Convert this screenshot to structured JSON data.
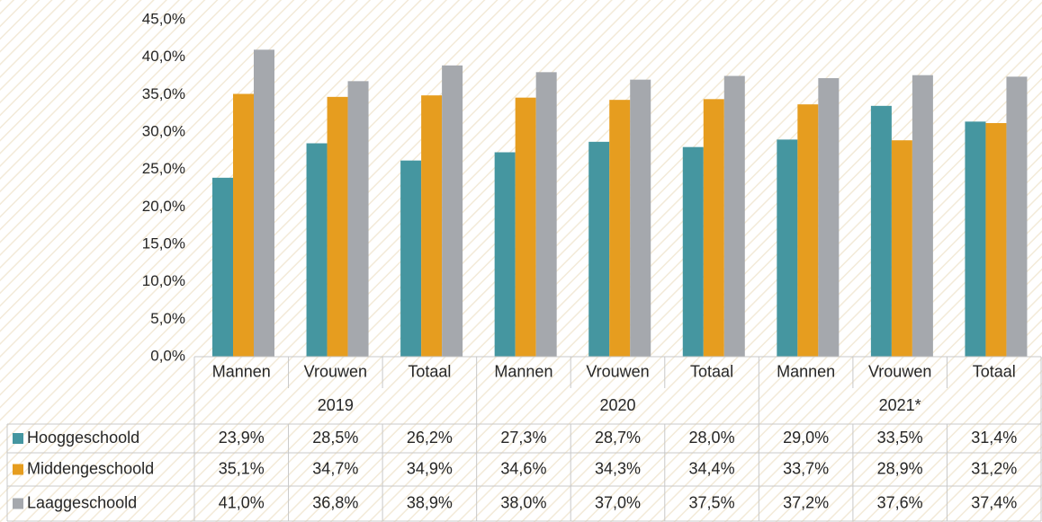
{
  "chart_data": {
    "type": "bar",
    "categories": [
      "Mannen",
      "Vrouwen",
      "Totaal",
      "Mannen",
      "Vrouwen",
      "Totaal",
      "Mannen",
      "Vrouwen",
      "Totaal"
    ],
    "groups": [
      "2019",
      "2020",
      "2021*"
    ],
    "series": [
      {
        "name": "Hooggeschoold",
        "color": "#4596a0",
        "values": [
          23.9,
          28.5,
          26.2,
          27.3,
          28.7,
          28.0,
          29.0,
          33.5,
          31.4
        ],
        "value_labels": [
          "23,9%",
          "28,5%",
          "26,2%",
          "27,3%",
          "28,7%",
          "28,0%",
          "29,0%",
          "33,5%",
          "31,4%"
        ]
      },
      {
        "name": "Middengeschoold",
        "color": "#e69d1f",
        "values": [
          35.1,
          34.7,
          34.9,
          34.6,
          34.3,
          34.4,
          33.7,
          28.9,
          31.2
        ],
        "value_labels": [
          "35,1%",
          "34,7%",
          "34,9%",
          "34,6%",
          "34,3%",
          "34,4%",
          "33,7%",
          "28,9%",
          "31,2%"
        ]
      },
      {
        "name": "Laaggeschoold",
        "color": "#a5a8ad",
        "values": [
          41.0,
          36.8,
          38.9,
          38.0,
          37.0,
          37.5,
          37.2,
          37.6,
          37.4
        ],
        "value_labels": [
          "41,0%",
          "36,8%",
          "38,9%",
          "38,0%",
          "37,0%",
          "37,5%",
          "37,2%",
          "37,6%",
          "37,4%"
        ]
      }
    ],
    "ylim": [
      0,
      45
    ],
    "yticks": [
      {
        "value": 0,
        "label": "0,0%"
      },
      {
        "value": 5,
        "label": "5,0%"
      },
      {
        "value": 10,
        "label": "10,0%"
      },
      {
        "value": 15,
        "label": "15,0%"
      },
      {
        "value": 20,
        "label": "20,0%"
      },
      {
        "value": 25,
        "label": "25,0%"
      },
      {
        "value": 30,
        "label": "30,0%"
      },
      {
        "value": 35,
        "label": "35,0%"
      },
      {
        "value": 40,
        "label": "40,0%"
      },
      {
        "value": 45,
        "label": "45,0%"
      }
    ],
    "grid": false
  }
}
